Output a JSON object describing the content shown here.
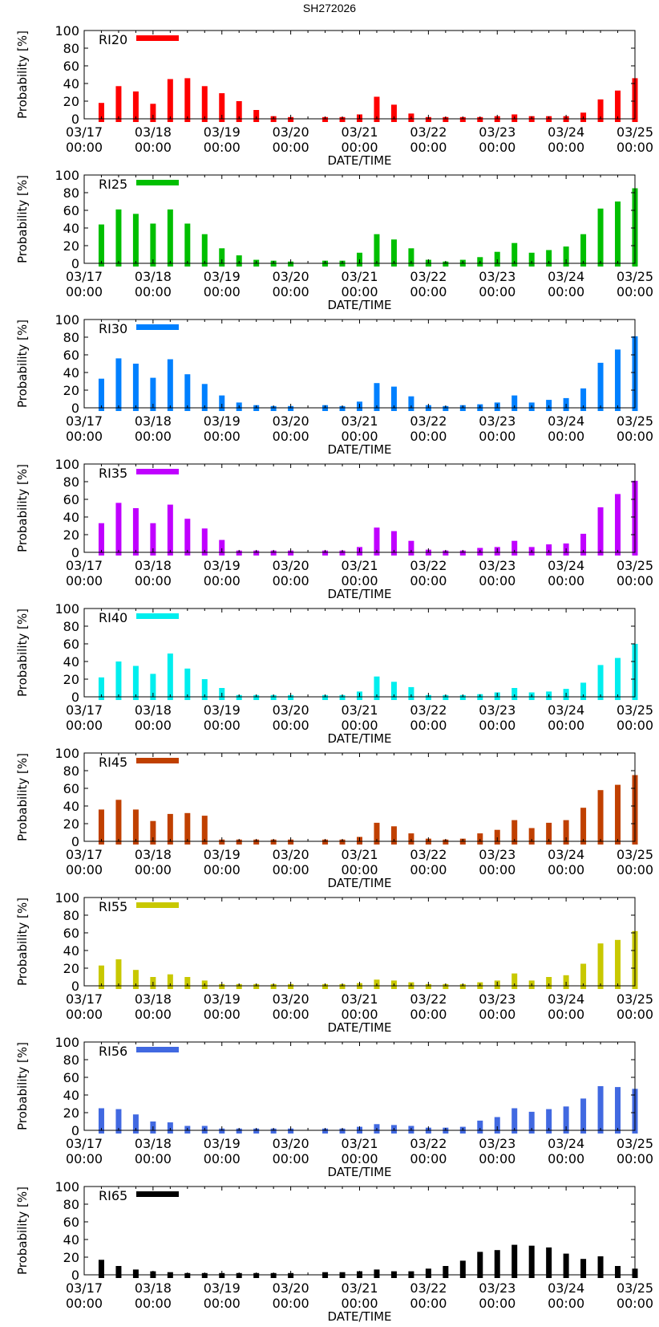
{
  "page": {
    "title": "SH272026"
  },
  "chart_data": [
    {
      "type": "bar",
      "series_name": "RI20",
      "color": "#ff0000",
      "ylabel": "Probability [%]",
      "xlabel": "DATE/TIME",
      "ylim": [
        0,
        100
      ],
      "yticks": [
        "0",
        "20",
        "40",
        "60",
        "80",
        "100"
      ],
      "xtick_dates": [
        "03/17",
        "03/18",
        "03/19",
        "03/20",
        "03/21",
        "03/22",
        "03/23",
        "03/24",
        "03/25"
      ],
      "xtick_times": [
        "00:00",
        "00:00",
        "00:00",
        "00:00",
        "00:00",
        "00:00",
        "00:00",
        "00:00",
        "00:00"
      ],
      "x_hours": [
        6,
        12,
        18,
        24,
        30,
        36,
        42,
        48,
        54,
        60,
        66,
        72,
        84,
        90,
        96,
        102,
        108,
        114,
        120,
        126,
        132,
        138,
        144,
        150,
        156,
        162,
        168,
        174,
        180,
        186,
        192
      ],
      "values": [
        18,
        37,
        31,
        17,
        45,
        46,
        37,
        29,
        20,
        10,
        3,
        2,
        2,
        2,
        5,
        25,
        16,
        6,
        2,
        2,
        2,
        2,
        3,
        5,
        3,
        3,
        3,
        7,
        22,
        32,
        46
      ]
    },
    {
      "type": "bar",
      "series_name": "RI25",
      "color": "#00bf00",
      "ylabel": "Probability [%]",
      "xlabel": "DATE/TIME",
      "ylim": [
        0,
        100
      ],
      "yticks": [
        "0",
        "20",
        "40",
        "60",
        "80",
        "100"
      ],
      "xtick_dates": [
        "03/17",
        "03/18",
        "03/19",
        "03/20",
        "03/21",
        "03/22",
        "03/23",
        "03/24",
        "03/25"
      ],
      "xtick_times": [
        "00:00",
        "00:00",
        "00:00",
        "00:00",
        "00:00",
        "00:00",
        "00:00",
        "00:00",
        "00:00"
      ],
      "x_hours": [
        6,
        12,
        18,
        24,
        30,
        36,
        42,
        48,
        54,
        60,
        66,
        72,
        84,
        90,
        96,
        102,
        108,
        114,
        120,
        126,
        132,
        138,
        144,
        150,
        156,
        162,
        168,
        174,
        180,
        186,
        192
      ],
      "values": [
        44,
        61,
        56,
        45,
        61,
        45,
        33,
        17,
        9,
        4,
        3,
        2,
        3,
        3,
        12,
        33,
        27,
        17,
        4,
        2,
        4,
        7,
        13,
        23,
        12,
        15,
        19,
        33,
        62,
        70,
        85
      ]
    },
    {
      "type": "bar",
      "series_name": "RI30",
      "color": "#0080ff",
      "ylabel": "Probability [%]",
      "xlabel": "DATE/TIME",
      "ylim": [
        0,
        100
      ],
      "yticks": [
        "0",
        "20",
        "40",
        "60",
        "80",
        "100"
      ],
      "xtick_dates": [
        "03/17",
        "03/18",
        "03/19",
        "03/20",
        "03/21",
        "03/22",
        "03/23",
        "03/24",
        "03/25"
      ],
      "xtick_times": [
        "00:00",
        "00:00",
        "00:00",
        "00:00",
        "00:00",
        "00:00",
        "00:00",
        "00:00",
        "00:00"
      ],
      "x_hours": [
        6,
        12,
        18,
        24,
        30,
        36,
        42,
        48,
        54,
        60,
        66,
        72,
        84,
        90,
        96,
        102,
        108,
        114,
        120,
        126,
        132,
        138,
        144,
        150,
        156,
        162,
        168,
        174,
        180,
        186,
        192
      ],
      "values": [
        33,
        56,
        50,
        34,
        55,
        38,
        27,
        14,
        6,
        3,
        2,
        2,
        3,
        2,
        7,
        28,
        24,
        13,
        3,
        2,
        3,
        4,
        6,
        14,
        6,
        9,
        11,
        22,
        51,
        66,
        81
      ]
    },
    {
      "type": "bar",
      "series_name": "RI35",
      "color": "#c000ff",
      "ylabel": "Probability [%]",
      "xlabel": "DATE/TIME",
      "ylim": [
        0,
        100
      ],
      "yticks": [
        "0",
        "20",
        "40",
        "60",
        "80",
        "100"
      ],
      "xtick_dates": [
        "03/17",
        "03/18",
        "03/19",
        "03/20",
        "03/21",
        "03/22",
        "03/23",
        "03/24",
        "03/25"
      ],
      "xtick_times": [
        "00:00",
        "00:00",
        "00:00",
        "00:00",
        "00:00",
        "00:00",
        "00:00",
        "00:00",
        "00:00"
      ],
      "x_hours": [
        6,
        12,
        18,
        24,
        30,
        36,
        42,
        48,
        54,
        60,
        66,
        72,
        84,
        90,
        96,
        102,
        108,
        114,
        120,
        126,
        132,
        138,
        144,
        150,
        156,
        162,
        168,
        174,
        180,
        186,
        192
      ],
      "values": [
        33,
        56,
        50,
        33,
        54,
        38,
        27,
        14,
        2,
        2,
        2,
        2,
        2,
        2,
        6,
        28,
        24,
        13,
        3,
        2,
        2,
        5,
        6,
        13,
        6,
        9,
        10,
        21,
        51,
        66,
        81
      ]
    },
    {
      "type": "bar",
      "series_name": "RI40",
      "color": "#00eeee",
      "ylabel": "Probability [%]",
      "xlabel": "DATE/TIME",
      "ylim": [
        0,
        100
      ],
      "yticks": [
        "0",
        "20",
        "40",
        "60",
        "80",
        "100"
      ],
      "xtick_dates": [
        "03/17",
        "03/18",
        "03/19",
        "03/20",
        "03/21",
        "03/22",
        "03/23",
        "03/24",
        "03/25"
      ],
      "xtick_times": [
        "00:00",
        "00:00",
        "00:00",
        "00:00",
        "00:00",
        "00:00",
        "00:00",
        "00:00",
        "00:00"
      ],
      "x_hours": [
        6,
        12,
        18,
        24,
        30,
        36,
        42,
        48,
        54,
        60,
        66,
        72,
        84,
        90,
        96,
        102,
        108,
        114,
        120,
        126,
        132,
        138,
        144,
        150,
        156,
        162,
        168,
        174,
        180,
        186,
        192
      ],
      "values": [
        22,
        40,
        35,
        26,
        49,
        32,
        20,
        10,
        2,
        2,
        2,
        2,
        2,
        2,
        6,
        23,
        17,
        11,
        2,
        2,
        2,
        3,
        5,
        10,
        5,
        6,
        9,
        16,
        36,
        44,
        60
      ]
    },
    {
      "type": "bar",
      "series_name": "RI45",
      "color": "#c04000",
      "ylabel": "Probability [%]",
      "xlabel": "DATE/TIME",
      "ylim": [
        0,
        100
      ],
      "yticks": [
        "0",
        "20",
        "40",
        "60",
        "80",
        "100"
      ],
      "xtick_dates": [
        "03/17",
        "03/18",
        "03/19",
        "03/20",
        "03/21",
        "03/22",
        "03/23",
        "03/24",
        "03/25"
      ],
      "xtick_times": [
        "00:00",
        "00:00",
        "00:00",
        "00:00",
        "00:00",
        "00:00",
        "00:00",
        "00:00",
        "00:00"
      ],
      "x_hours": [
        6,
        12,
        18,
        24,
        30,
        36,
        42,
        48,
        54,
        60,
        66,
        72,
        84,
        90,
        96,
        102,
        108,
        114,
        120,
        126,
        132,
        138,
        144,
        150,
        156,
        162,
        168,
        174,
        180,
        186,
        192
      ],
      "values": [
        36,
        47,
        36,
        23,
        31,
        32,
        29,
        2,
        2,
        2,
        2,
        2,
        2,
        2,
        5,
        21,
        17,
        9,
        3,
        2,
        3,
        9,
        13,
        24,
        15,
        21,
        24,
        38,
        58,
        64,
        75
      ]
    },
    {
      "type": "bar",
      "series_name": "RI55",
      "color": "#c8c800",
      "ylabel": "Probability [%]",
      "xlabel": "DATE/TIME",
      "ylim": [
        0,
        100
      ],
      "yticks": [
        "0",
        "20",
        "40",
        "60",
        "80",
        "100"
      ],
      "xtick_dates": [
        "03/17",
        "03/18",
        "03/19",
        "03/20",
        "03/21",
        "03/22",
        "03/23",
        "03/24",
        "03/25"
      ],
      "xtick_times": [
        "00:00",
        "00:00",
        "00:00",
        "00:00",
        "00:00",
        "00:00",
        "00:00",
        "00:00",
        "00:00"
      ],
      "x_hours": [
        6,
        12,
        18,
        24,
        30,
        36,
        42,
        48,
        54,
        60,
        66,
        72,
        84,
        90,
        96,
        102,
        108,
        114,
        120,
        126,
        132,
        138,
        144,
        150,
        156,
        162,
        168,
        174,
        180,
        186,
        192
      ],
      "values": [
        23,
        30,
        18,
        10,
        13,
        10,
        6,
        2,
        2,
        2,
        2,
        2,
        2,
        2,
        3,
        7,
        6,
        4,
        2,
        2,
        2,
        4,
        6,
        14,
        6,
        10,
        12,
        25,
        48,
        52,
        62
      ]
    },
    {
      "type": "bar",
      "series_name": "RI56",
      "color": "#4169e1",
      "ylabel": "Probability [%]",
      "xlabel": "DATE/TIME",
      "ylim": [
        0,
        100
      ],
      "yticks": [
        "0",
        "20",
        "40",
        "60",
        "80",
        "100"
      ],
      "xtick_dates": [
        "03/17",
        "03/18",
        "03/19",
        "03/20",
        "03/21",
        "03/22",
        "03/23",
        "03/24",
        "03/25"
      ],
      "xtick_times": [
        "00:00",
        "00:00",
        "00:00",
        "00:00",
        "00:00",
        "00:00",
        "00:00",
        "00:00",
        "00:00"
      ],
      "x_hours": [
        6,
        12,
        18,
        24,
        30,
        36,
        42,
        48,
        54,
        60,
        66,
        72,
        84,
        90,
        96,
        102,
        108,
        114,
        120,
        126,
        132,
        138,
        144,
        150,
        156,
        162,
        168,
        174,
        180,
        186,
        192
      ],
      "values": [
        25,
        24,
        18,
        10,
        9,
        5,
        5,
        2,
        2,
        2,
        2,
        2,
        2,
        2,
        4,
        7,
        6,
        5,
        3,
        3,
        4,
        11,
        15,
        25,
        21,
        24,
        27,
        36,
        50,
        49,
        47
      ]
    },
    {
      "type": "bar",
      "series_name": "RI65",
      "color": "#000000",
      "ylabel": "Probability [%]",
      "xlabel": "DATE/TIME",
      "ylim": [
        0,
        100
      ],
      "yticks": [
        "0",
        "20",
        "40",
        "60",
        "80",
        "100"
      ],
      "xtick_dates": [
        "03/17",
        "03/18",
        "03/19",
        "03/20",
        "03/21",
        "03/22",
        "03/23",
        "03/24",
        "03/25"
      ],
      "xtick_times": [
        "00:00",
        "00:00",
        "00:00",
        "00:00",
        "00:00",
        "00:00",
        "00:00",
        "00:00",
        "00:00"
      ],
      "x_hours": [
        6,
        12,
        18,
        24,
        30,
        36,
        42,
        48,
        54,
        60,
        66,
        72,
        84,
        90,
        96,
        102,
        108,
        114,
        120,
        126,
        132,
        138,
        144,
        150,
        156,
        162,
        168,
        174,
        180,
        186,
        192
      ],
      "values": [
        17,
        10,
        6,
        4,
        3,
        2,
        2,
        2,
        2,
        2,
        2,
        2,
        3,
        3,
        4,
        6,
        4,
        4,
        7,
        10,
        16,
        26,
        28,
        34,
        33,
        31,
        24,
        18,
        21,
        10,
        7
      ]
    }
  ]
}
